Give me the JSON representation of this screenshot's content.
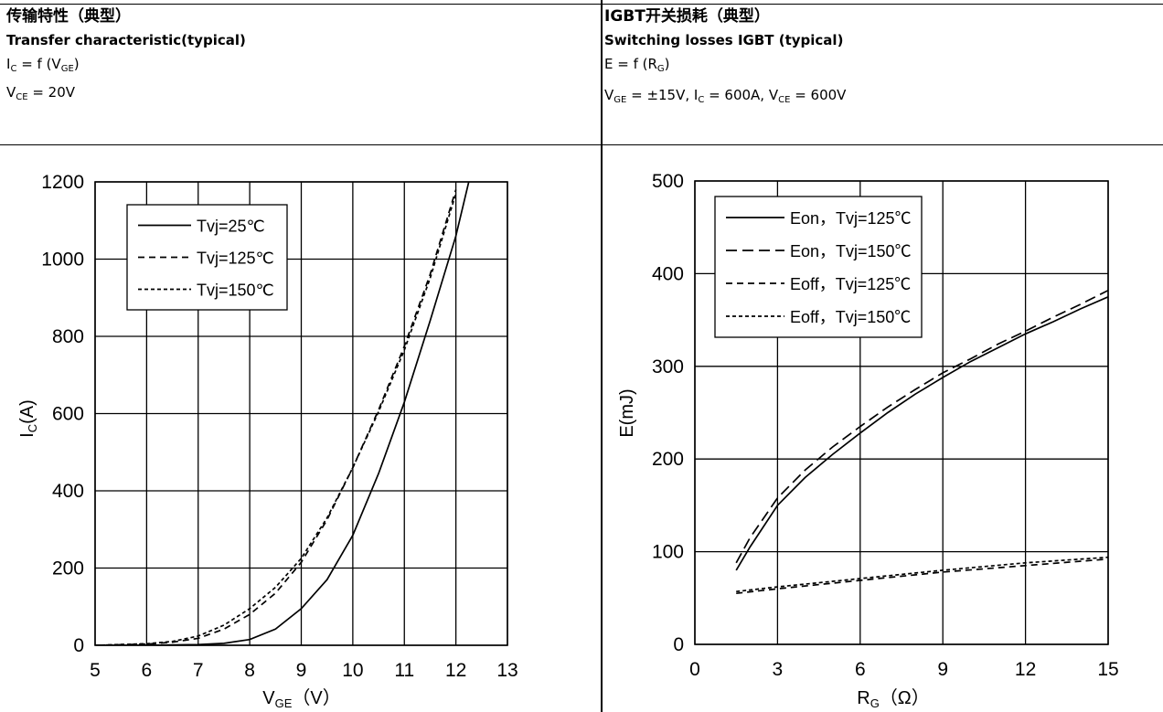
{
  "left_header": {
    "title_cn": "传输特性（典型）",
    "title_en": "Transfer characteristic(typical)",
    "formula_main": "I",
    "formula_main_sub": "C",
    "formula_rest": " = f (V",
    "formula_rest_sub": "GE",
    "formula_close": ")",
    "cond_main": "V",
    "cond_sub": "CE",
    "cond_rest": " = 20V"
  },
  "right_header": {
    "title_cn": "IGBT开关损耗（典型）",
    "title_en": "Switching losses IGBT (typical)",
    "formula_main": "E = f (R",
    "formula_sub": "G",
    "formula_close": ")",
    "cond_p1": "V",
    "cond_s1": "GE",
    "cond_p2": " = ±15V, I",
    "cond_s2": "C",
    "cond_p3": " = 600A, V",
    "cond_s3": "CE",
    "cond_p4": " = 600V"
  },
  "chart_data": [
    {
      "type": "line",
      "xlabel_main": "V",
      "xlabel_sub": "GE",
      "xlabel_unit": "（V）",
      "ylabel_main": "I",
      "ylabel_sub": "C",
      "ylabel_unit": "(A)",
      "xlim": [
        5,
        13
      ],
      "ylim": [
        0,
        1200
      ],
      "xticks": [
        5,
        6,
        7,
        8,
        9,
        10,
        11,
        12,
        13
      ],
      "yticks": [
        0,
        200,
        400,
        600,
        800,
        1000,
        1200
      ],
      "grid": true,
      "legend_position": "top-left",
      "series": [
        {
          "name": "Tvj=25℃",
          "dash": "solid",
          "x": [
            5,
            6,
            7,
            7.5,
            8,
            8.5,
            9,
            9.5,
            10,
            10.5,
            11,
            11.5,
            12,
            12.25
          ],
          "y": [
            0,
            0,
            2,
            5,
            15,
            42,
            95,
            170,
            285,
            445,
            630,
            840,
            1060,
            1200
          ]
        },
        {
          "name": "Tvj=125℃",
          "dash": "dash",
          "x": [
            5,
            6,
            6.5,
            7,
            7.5,
            8,
            8.5,
            9,
            9.5,
            10,
            10.5,
            11,
            11.5,
            12
          ],
          "y": [
            0,
            3,
            8,
            18,
            42,
            80,
            135,
            215,
            325,
            460,
            610,
            775,
            960,
            1180
          ]
        },
        {
          "name": "Tvj=150℃",
          "dash": "dot",
          "x": [
            5,
            6,
            6.5,
            7,
            7.5,
            8,
            8.5,
            9,
            9.5,
            10,
            10.5,
            11,
            11.5,
            12
          ],
          "y": [
            0,
            4,
            10,
            24,
            52,
            95,
            150,
            225,
            330,
            460,
            605,
            765,
            950,
            1170
          ]
        }
      ]
    },
    {
      "type": "line",
      "xlabel_main": "R",
      "xlabel_sub": "G",
      "xlabel_unit": "（Ω）",
      "ylabel": "E(mJ)",
      "xlim": [
        0,
        15
      ],
      "ylim": [
        0,
        500
      ],
      "xticks": [
        0,
        3,
        6,
        9,
        12,
        15
      ],
      "yticks": [
        0,
        100,
        200,
        300,
        400,
        500
      ],
      "grid": true,
      "legend_position": "top-left",
      "series": [
        {
          "name": "Eon，Tvj=125℃",
          "dash": "solid",
          "x": [
            1.5,
            2,
            3,
            4,
            5,
            6,
            7,
            8,
            9,
            10,
            11,
            12,
            13,
            14,
            15
          ],
          "y": [
            80,
            105,
            150,
            180,
            205,
            228,
            250,
            270,
            288,
            305,
            320,
            335,
            348,
            362,
            375
          ]
        },
        {
          "name": "Eon，Tvj=150℃",
          "dash": "longdash",
          "x": [
            1.5,
            2,
            3,
            4,
            5,
            6,
            7,
            8,
            9,
            10,
            11,
            12,
            13,
            14,
            15
          ],
          "y": [
            88,
            115,
            158,
            188,
            213,
            235,
            256,
            275,
            293,
            308,
            324,
            338,
            353,
            367,
            382
          ]
        },
        {
          "name": "Eoff，Tvj=125℃",
          "dash": "dash",
          "x": [
            1.5,
            3,
            6,
            9,
            12,
            15
          ],
          "y": [
            55,
            60,
            69,
            78,
            85,
            92
          ]
        },
        {
          "name": "Eoff，Tvj=150℃",
          "dash": "dot",
          "x": [
            1.5,
            3,
            6,
            9,
            12,
            15
          ],
          "y": [
            57,
            62,
            71,
            80,
            88,
            94
          ]
        }
      ]
    }
  ]
}
